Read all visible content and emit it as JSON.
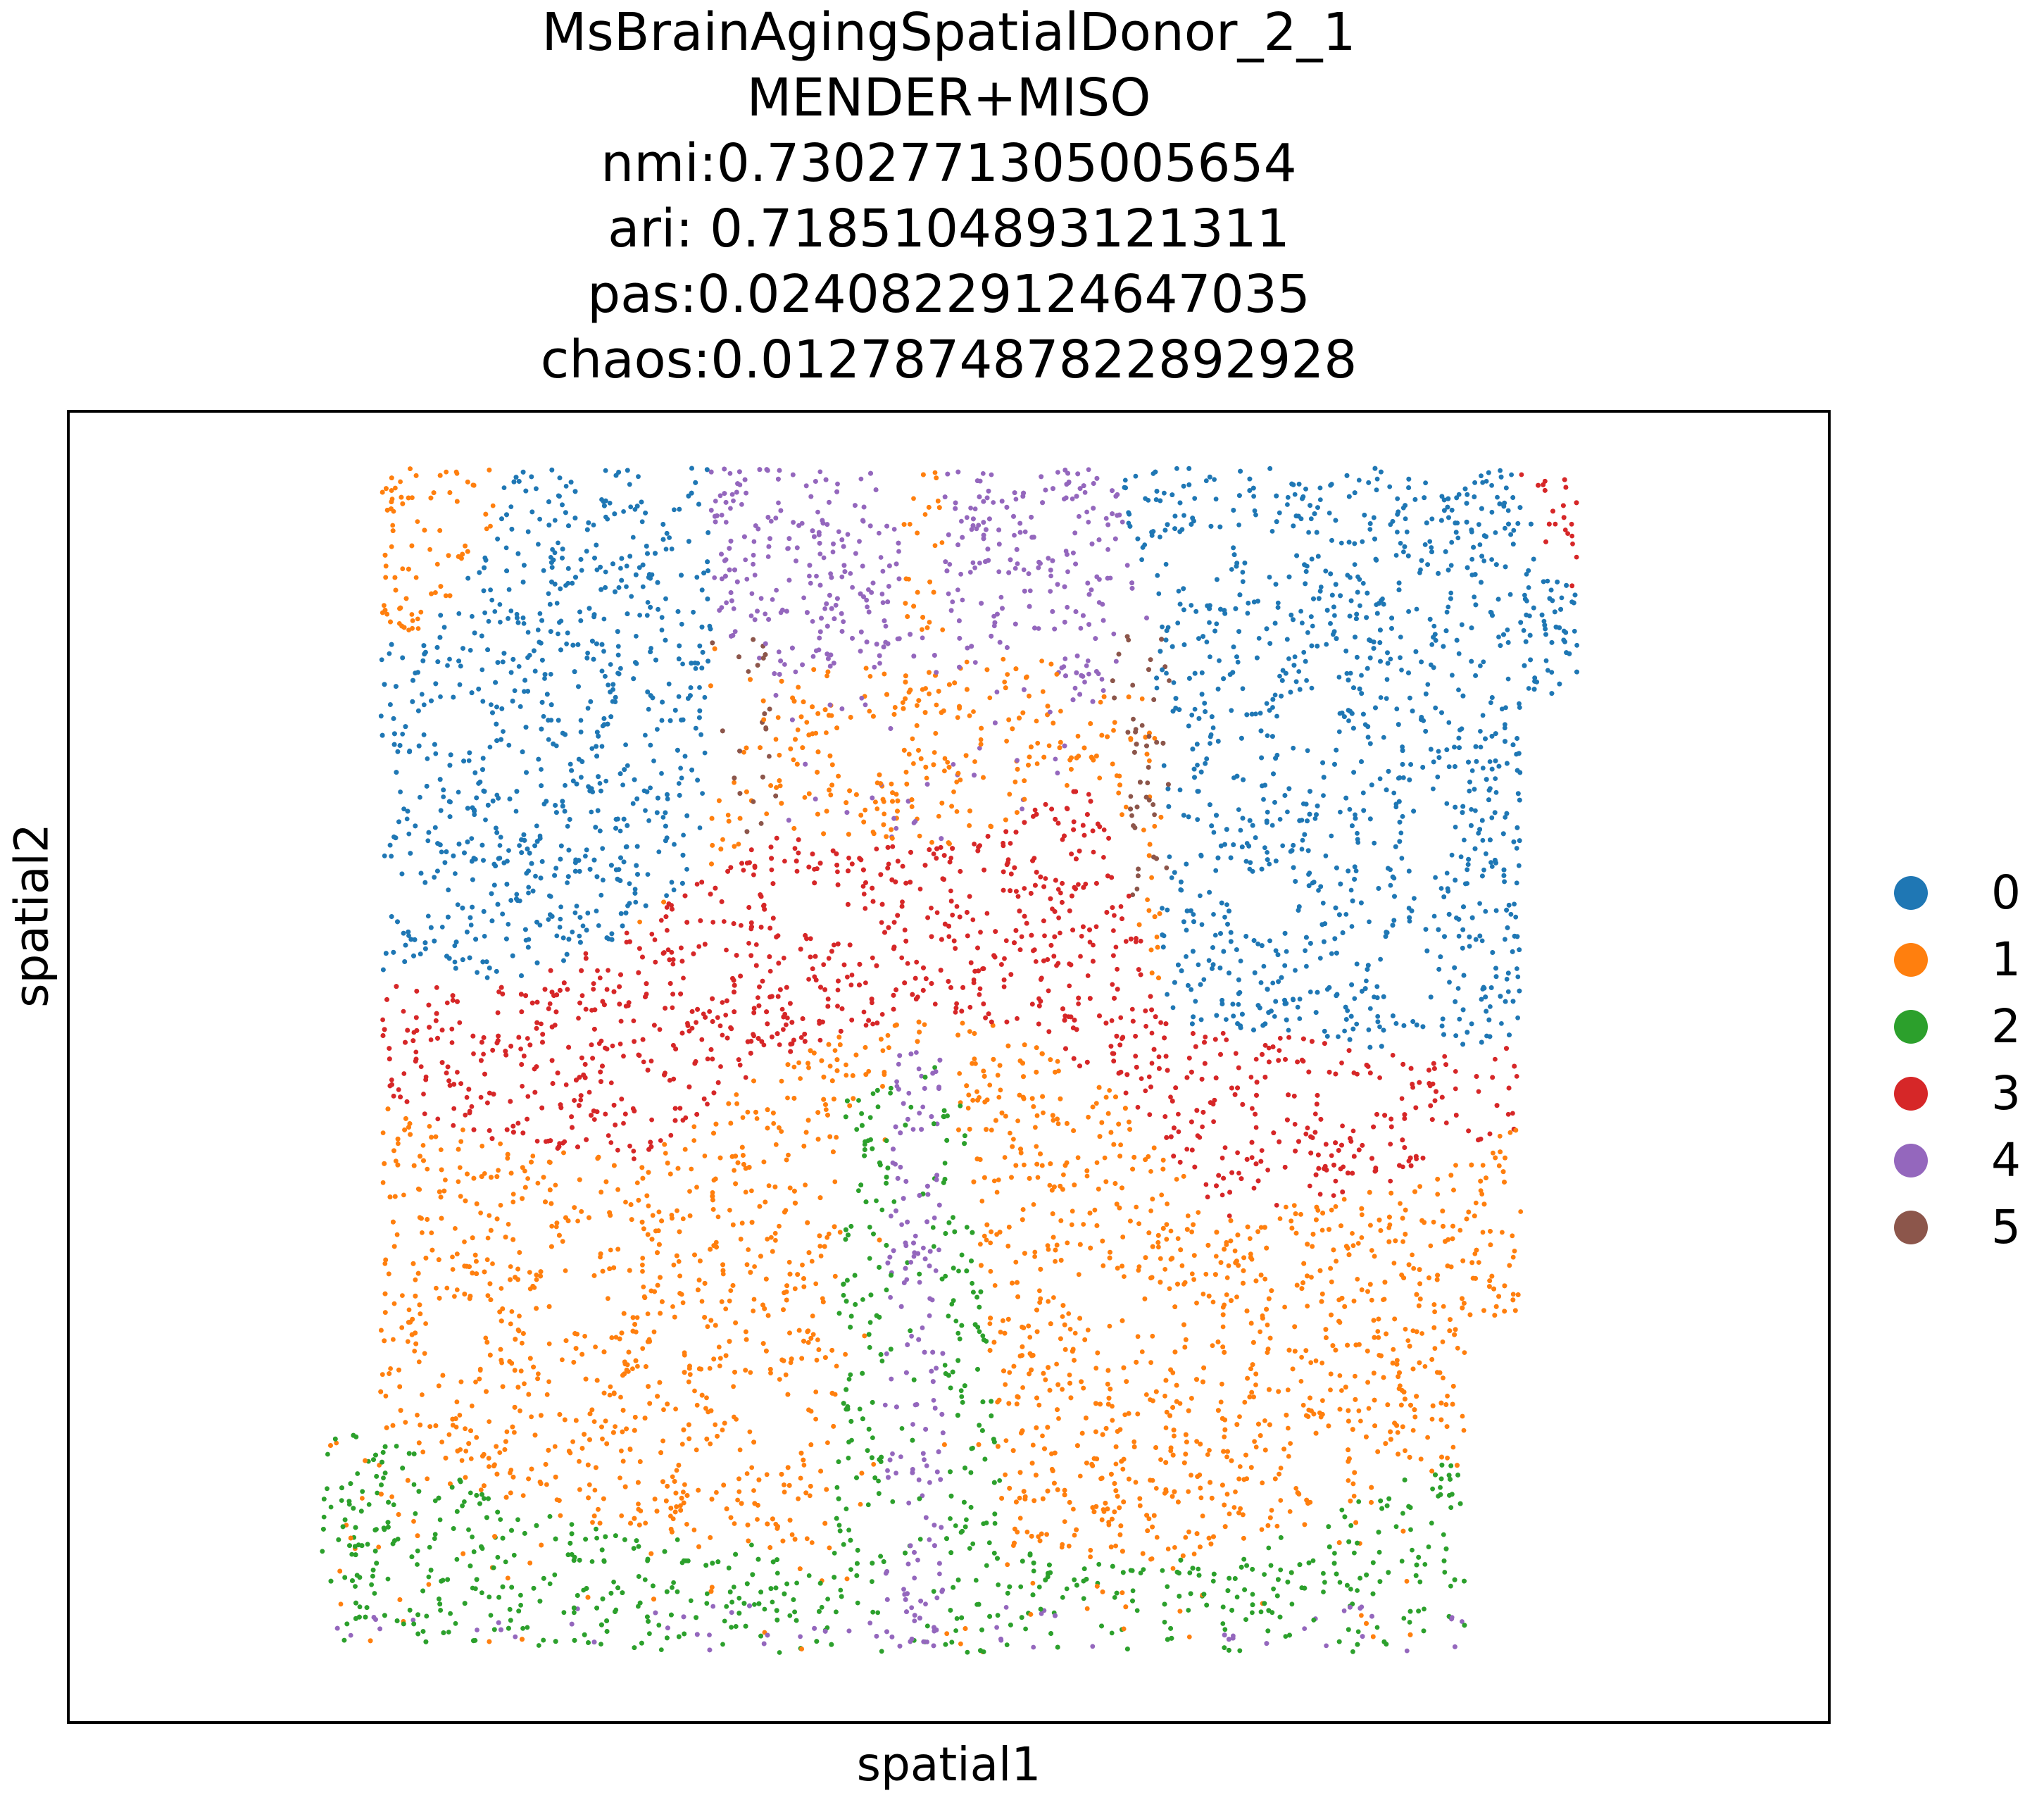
{
  "chart_data": {
    "type": "scatter",
    "title_lines": [
      "MsBrainAgingSpatialDonor_2_1",
      "MENDER+MISO",
      "nmi:0.7302771305005654",
      "ari: 0.7185104893121311",
      "pas:0.02408229124647035",
      "chaos:0.012787487822892928"
    ],
    "xlabel": "spatial1",
    "ylabel": "spatial2",
    "xticks": [],
    "yticks": [],
    "legend_placement": "right",
    "grid": false,
    "categories": [
      {
        "label": "0",
        "color": "#1f77b4"
      },
      {
        "label": "1",
        "color": "#ff7f0e"
      },
      {
        "label": "2",
        "color": "#2ca02c"
      },
      {
        "label": "3",
        "color": "#d62728"
      },
      {
        "label": "4",
        "color": "#9467bd"
      },
      {
        "label": "5",
        "color": "#8c564b"
      }
    ]
  }
}
